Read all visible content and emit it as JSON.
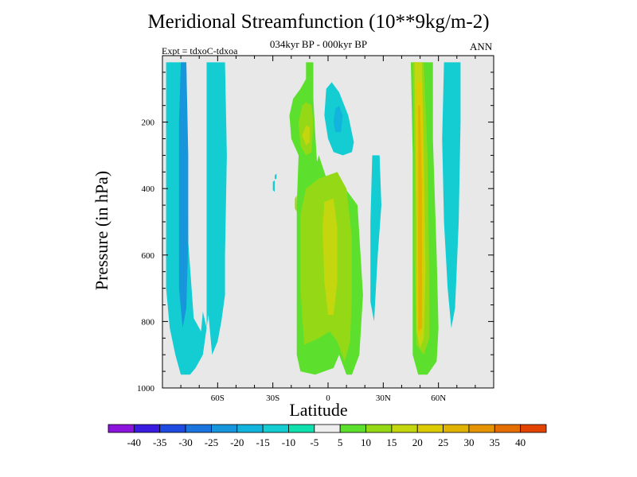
{
  "title": "Meridional Streamfunction (10**9kg/m-2)",
  "subtitle": "034kyr BP - 000kyr BP",
  "expt_label": "Expt = tdxoC-tdxoa",
  "season": "ANN",
  "chart_data": {
    "type": "heatmap",
    "title": "Meridional Streamfunction (10**9kg/m-2)",
    "subtitle": "034kyr BP - 000kyr BP",
    "xlabel": "Latitude",
    "ylabel": "Pressure (in hPa)",
    "x_ticks": [
      {
        "value": -60,
        "label": "60S"
      },
      {
        "value": -30,
        "label": "30S"
      },
      {
        "value": 0,
        "label": "0"
      },
      {
        "value": 30,
        "label": "30N"
      },
      {
        "value": 60,
        "label": "60N"
      }
    ],
    "y_ticks": [
      200,
      400,
      600,
      800,
      1000
    ],
    "xlim": [
      -90,
      90
    ],
    "ylim": [
      1000,
      0
    ],
    "background_color": "#e8e8e8",
    "contour_levels": [
      -40,
      -35,
      -30,
      -25,
      -20,
      -15,
      -10,
      -5,
      5,
      10,
      15,
      20,
      25,
      30,
      35,
      40
    ],
    "colorbar_colors": [
      "#8d14dd",
      "#3a1ce0",
      "#1e4ce0",
      "#1c75df",
      "#1796dc",
      "#12b3dc",
      "#14cdd3",
      "#10e0ad",
      "#eeeeee",
      "#5de02d",
      "#95d916",
      "#c4d60e",
      "#dccb00",
      "#e2b200",
      "#e49400",
      "#e46f00",
      "#e24300"
    ],
    "regions": [
      {
        "value": -10,
        "color": "#14cdd3",
        "points": [
          [
            -88,
            20
          ],
          [
            -77,
            20
          ],
          [
            -76,
            560
          ],
          [
            -73,
            790
          ],
          [
            -69,
            830
          ],
          [
            -68,
            770
          ],
          [
            -66,
            820
          ],
          [
            -66,
            20
          ],
          [
            -56,
            20
          ],
          [
            -55,
            300
          ],
          [
            -56,
            600
          ],
          [
            -56,
            720
          ],
          [
            -58,
            800
          ],
          [
            -60,
            860
          ],
          [
            -63,
            900
          ],
          [
            -64,
            840
          ],
          [
            -65,
            780
          ],
          [
            -68,
            900
          ],
          [
            -72,
            940
          ],
          [
            -75,
            960
          ],
          [
            -80,
            960
          ],
          [
            -83,
            900
          ],
          [
            -86,
            820
          ],
          [
            -88,
            700
          ]
        ]
      },
      {
        "value": -20,
        "color": "#1796dc",
        "points": [
          [
            -80,
            20
          ],
          [
            -77,
            20
          ],
          [
            -76,
            300
          ],
          [
            -76,
            560
          ],
          [
            -77,
            760
          ],
          [
            -79,
            820
          ],
          [
            -81,
            700
          ],
          [
            -81,
            450
          ],
          [
            -81,
            200
          ]
        ]
      },
      {
        "value": -10,
        "color": "#14cdd3",
        "points": [
          [
            -1,
            100
          ],
          [
            2,
            80
          ],
          [
            6,
            110
          ],
          [
            11,
            180
          ],
          [
            14,
            260
          ],
          [
            13,
            290
          ],
          [
            8,
            300
          ],
          [
            3,
            290
          ],
          [
            0,
            250
          ],
          [
            -2,
            180
          ]
        ]
      },
      {
        "value": -15,
        "color": "#12b3dc",
        "points": [
          [
            4,
            160
          ],
          [
            6,
            150
          ],
          [
            8,
            180
          ],
          [
            7,
            230
          ],
          [
            4,
            230
          ],
          [
            3,
            200
          ]
        ]
      },
      {
        "value": -10,
        "color": "#14cdd3",
        "points": [
          [
            24,
            300
          ],
          [
            28,
            300
          ],
          [
            29,
            450
          ],
          [
            27,
            600
          ],
          [
            25,
            800
          ],
          [
            23,
            740
          ],
          [
            23,
            500
          ]
        ]
      },
      {
        "value": -10,
        "color": "#14cdd3",
        "points": [
          [
            63,
            20
          ],
          [
            72,
            20
          ],
          [
            72,
            200
          ],
          [
            71,
            500
          ],
          [
            69,
            760
          ],
          [
            67,
            820
          ],
          [
            65,
            700
          ],
          [
            63,
            500
          ],
          [
            62,
            250
          ]
        ]
      },
      {
        "value": 5,
        "color": "#5de02d",
        "points": [
          [
            -12,
            20
          ],
          [
            -8,
            20
          ],
          [
            -8,
            130
          ],
          [
            -7,
            230
          ],
          [
            -6,
            320
          ],
          [
            -5,
            300
          ],
          [
            1,
            400
          ],
          [
            8,
            390
          ],
          [
            16,
            450
          ],
          [
            19,
            720
          ],
          [
            17,
            900
          ],
          [
            13,
            960
          ],
          [
            10,
            960
          ],
          [
            6,
            900
          ],
          [
            3,
            940
          ],
          [
            -7,
            960
          ],
          [
            -15,
            950
          ],
          [
            -17,
            900
          ],
          [
            -17,
            700
          ],
          [
            -17,
            450
          ],
          [
            -16,
            300
          ],
          [
            -20,
            250
          ],
          [
            -21,
            180
          ],
          [
            -19,
            130
          ],
          [
            -15,
            100
          ],
          [
            -12,
            70
          ]
        ]
      },
      {
        "value": 10,
        "color": "#95d916",
        "points": [
          [
            -12,
            140
          ],
          [
            -9,
            150
          ],
          [
            -8,
            200
          ],
          [
            -9,
            290
          ],
          [
            -12,
            300
          ],
          [
            -15,
            270
          ],
          [
            -16,
            200
          ],
          [
            -14,
            150
          ]
        ]
      },
      {
        "value": 10,
        "color": "#95d916",
        "points": [
          [
            -5,
            370
          ],
          [
            5,
            350
          ],
          [
            10,
            400
          ],
          [
            13,
            550
          ],
          [
            13,
            720
          ],
          [
            12,
            860
          ],
          [
            9,
            920
          ],
          [
            5,
            860
          ],
          [
            1,
            830
          ],
          [
            -5,
            850
          ],
          [
            -13,
            870
          ],
          [
            -15,
            700
          ],
          [
            -15,
            480
          ],
          [
            -12,
            400
          ]
        ]
      },
      {
        "value": 15,
        "color": "#c4d60e",
        "points": [
          [
            -12,
            210
          ],
          [
            -10,
            215
          ],
          [
            -10,
            260
          ],
          [
            -12,
            270
          ],
          [
            -14,
            240
          ]
        ]
      },
      {
        "value": 15,
        "color": "#c4d60e",
        "points": [
          [
            -2,
            440
          ],
          [
            3,
            430
          ],
          [
            5,
            520
          ],
          [
            5,
            680
          ],
          [
            3,
            780
          ],
          [
            0,
            780
          ],
          [
            -2,
            680
          ],
          [
            -3,
            520
          ]
        ]
      },
      {
        "value": 5,
        "color": "#5de02d",
        "points": [
          [
            45,
            20
          ],
          [
            57,
            20
          ],
          [
            57,
            250
          ],
          [
            59,
            600
          ],
          [
            60,
            820
          ],
          [
            59,
            920
          ],
          [
            54,
            960
          ],
          [
            49,
            960
          ],
          [
            46,
            900
          ],
          [
            46,
            600
          ],
          [
            46,
            300
          ]
        ]
      },
      {
        "value": 10,
        "color": "#95d916",
        "points": [
          [
            46,
            20
          ],
          [
            52,
            20
          ],
          [
            54,
            300
          ],
          [
            55,
            650
          ],
          [
            55,
            850
          ],
          [
            52,
            900
          ],
          [
            48,
            870
          ],
          [
            47,
            600
          ],
          [
            47,
            300
          ]
        ]
      },
      {
        "value": 15,
        "color": "#c4d60e",
        "points": [
          [
            47,
            20
          ],
          [
            51,
            20
          ],
          [
            52,
            300
          ],
          [
            53,
            650
          ],
          [
            52,
            850
          ],
          [
            50,
            880
          ],
          [
            48,
            830
          ],
          [
            48,
            500
          ]
        ]
      },
      {
        "value": 20,
        "color": "#dccb00",
        "points": [
          [
            48,
            80
          ],
          [
            51,
            80
          ],
          [
            52,
            500
          ],
          [
            51,
            830
          ],
          [
            49,
            850
          ],
          [
            48,
            700
          ],
          [
            48,
            300
          ]
        ]
      },
      {
        "value": 25,
        "color": "#e2b200",
        "points": [
          [
            49,
            150
          ],
          [
            50,
            150
          ],
          [
            51,
            400
          ],
          [
            51,
            820
          ],
          [
            49,
            830
          ],
          [
            49,
            500
          ]
        ]
      },
      {
        "value": 10,
        "color": "#95d916",
        "points": [
          [
            -18,
            430
          ],
          [
            -17,
            420
          ],
          [
            -17,
            470
          ],
          [
            -18,
            460
          ]
        ]
      },
      {
        "value": -10,
        "color": "#14cdd3",
        "points": [
          [
            -30,
            380
          ],
          [
            -29,
            375
          ],
          [
            -29,
            410
          ],
          [
            -30,
            405
          ]
        ]
      },
      {
        "value": -10,
        "color": "#14cdd3",
        "points": [
          [
            -29,
            360
          ],
          [
            -28,
            355
          ],
          [
            -28,
            370
          ],
          [
            -29,
            372
          ]
        ]
      }
    ]
  },
  "colorbar": {
    "labels": [
      "-40",
      "-35",
      "-30",
      "-25",
      "-20",
      "-15",
      "-10",
      "-5",
      "5",
      "10",
      "15",
      "20",
      "25",
      "30",
      "35",
      "40"
    ]
  }
}
